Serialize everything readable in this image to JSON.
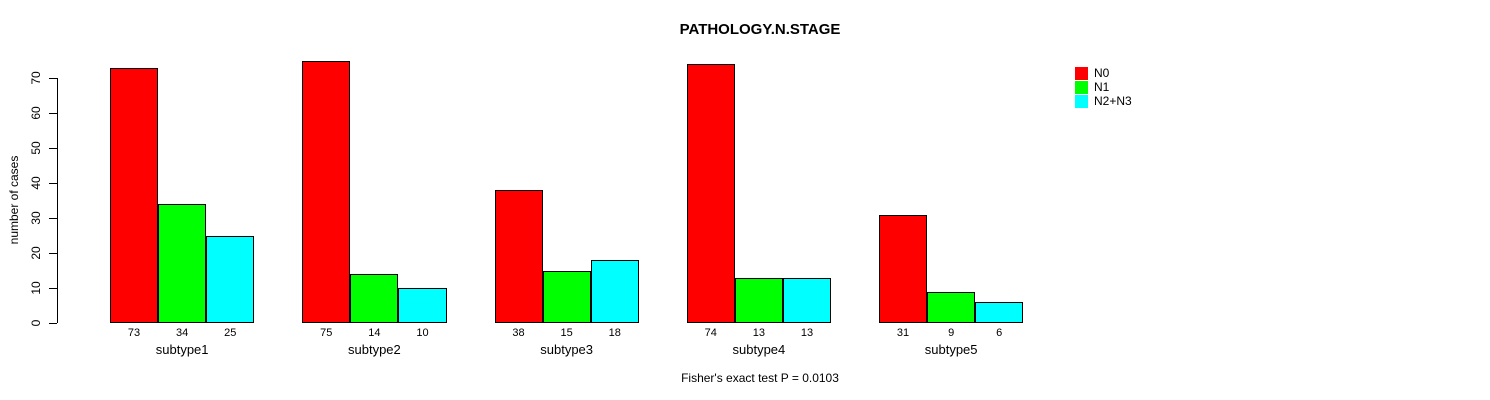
{
  "chart_data": {
    "type": "bar",
    "title": "PATHOLOGY.N.STAGE",
    "ylabel": "number of cases",
    "annotation": "Fisher's exact test P = 0.0103",
    "categories": [
      "subtype1",
      "subtype2",
      "subtype3",
      "subtype4",
      "subtype5"
    ],
    "series": [
      {
        "name": "N0",
        "color": "#FF0000",
        "values": [
          73,
          75,
          38,
          74,
          31
        ]
      },
      {
        "name": "N1",
        "color": "#00FF00",
        "values": [
          34,
          14,
          15,
          13,
          9
        ]
      },
      {
        "name": "N2+N3",
        "color": "#00FFFF",
        "values": [
          25,
          10,
          18,
          13,
          6
        ]
      }
    ],
    "y_ticks": [
      0,
      10,
      20,
      30,
      40,
      50,
      60,
      70
    ],
    "ylim": [
      0,
      70
    ],
    "grid": false,
    "legend_position": "top-right",
    "bar_border_color": "#000000",
    "text_color": "#000000",
    "value_labels_shown": true
  }
}
